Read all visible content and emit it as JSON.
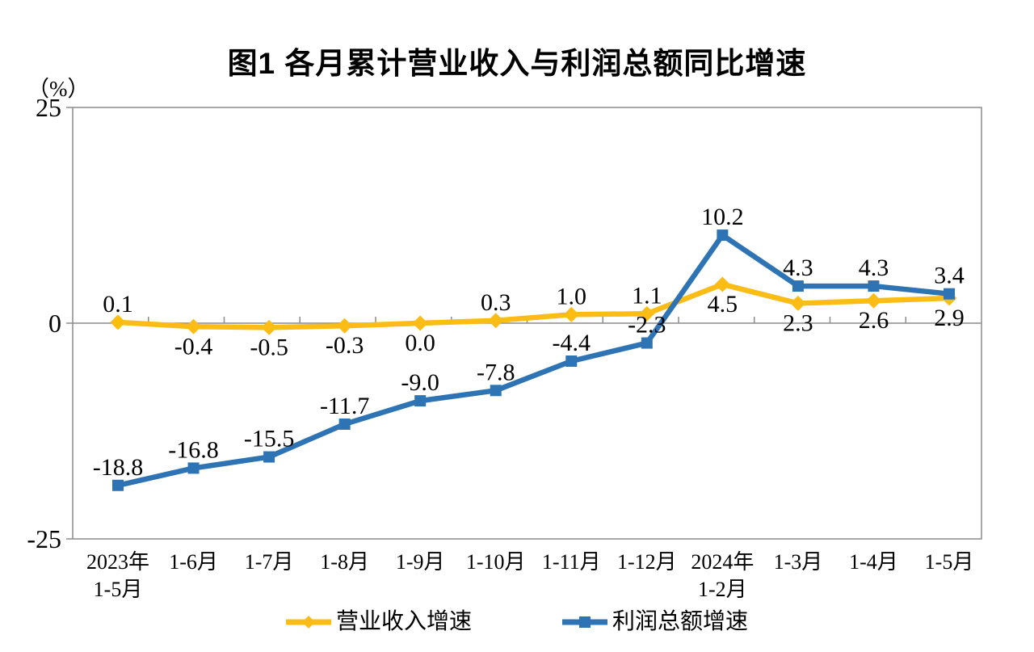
{
  "chart_data": {
    "type": "line",
    "title": "图1 各月累计营业收入与利润总额同比增速",
    "unit_label": "（%）",
    "ylim": [
      -25,
      25
    ],
    "yticks": [
      25,
      0,
      -25
    ],
    "grid": false,
    "legend_position": "bottom",
    "categories": [
      [
        "2023年",
        "1-5月"
      ],
      [
        "1-6月"
      ],
      [
        "1-7月"
      ],
      [
        "1-8月"
      ],
      [
        "1-9月"
      ],
      [
        "1-10月"
      ],
      [
        "1-11月"
      ],
      [
        "1-12月"
      ],
      [
        "2024年",
        "1-2月"
      ],
      [
        "1-3月"
      ],
      [
        "1-4月"
      ],
      [
        "1-5月"
      ]
    ],
    "series": [
      {
        "name": "营业收入增速",
        "color": "#FBBC15",
        "marker": "diamond",
        "values": [
          0.1,
          -0.4,
          -0.5,
          -0.3,
          0.0,
          0.3,
          1.0,
          1.1,
          4.5,
          2.3,
          2.6,
          2.9
        ],
        "label_side": [
          "above",
          "below",
          "below",
          "below",
          "below",
          "above",
          "above",
          "above",
          "below",
          "below",
          "below",
          "below"
        ]
      },
      {
        "name": "利润总额增速",
        "color": "#2E74B5",
        "marker": "square",
        "values": [
          -18.8,
          -16.8,
          -15.5,
          -11.7,
          -9.0,
          -7.8,
          -4.4,
          -2.3,
          10.2,
          4.3,
          4.3,
          3.4
        ],
        "label_side": [
          "above",
          "above",
          "above",
          "above",
          "above",
          "above",
          "above",
          "above",
          "above",
          "above",
          "above",
          "above"
        ]
      }
    ],
    "axis_color": "#8C8C8C",
    "text_color": "#000000"
  }
}
